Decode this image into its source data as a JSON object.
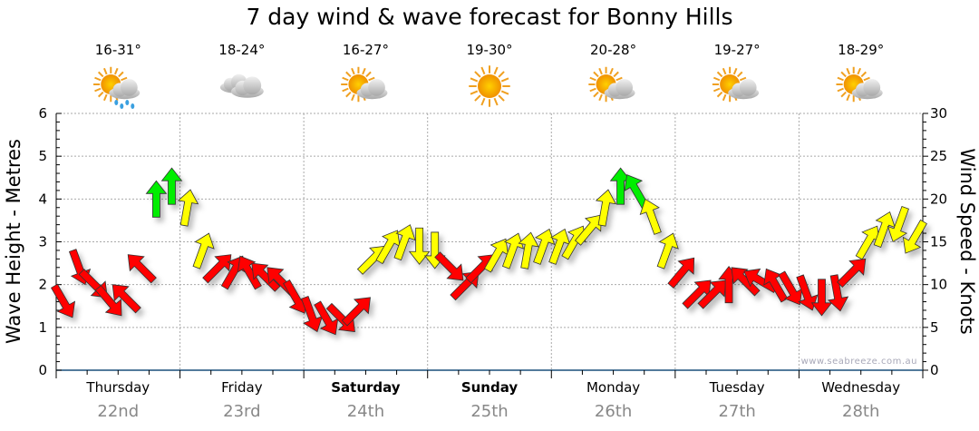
{
  "chart_data": {
    "type": "scatter",
    "title": "7 day wind & wave forecast for Bonny Hills",
    "ylabel_left": "Wave Height - Metres",
    "ylabel_right": "Wind Speed - Knots",
    "ylim_left": [
      0,
      6
    ],
    "ylim_right": [
      0,
      30
    ],
    "yticks_left": [
      "0",
      "1",
      "2",
      "3",
      "4",
      "5",
      "6"
    ],
    "yticks_right": [
      "0",
      "5",
      "10",
      "15",
      "20",
      "25",
      "30"
    ],
    "grid": true,
    "watermark": "www.seabreeze.com.au",
    "days": [
      {
        "day": "Thursday",
        "date": "22nd",
        "temp": "16-31°",
        "icon": "sun-cloud-rain-icon",
        "bold": false
      },
      {
        "day": "Friday",
        "date": "23rd",
        "temp": "18-24°",
        "icon": "cloudy-icon",
        "bold": false
      },
      {
        "day": "Saturday",
        "date": "24th",
        "temp": "16-27°",
        "icon": "partly-cloudy-icon",
        "bold": true
      },
      {
        "day": "Sunday",
        "date": "25th",
        "temp": "19-30°",
        "icon": "sunny-icon",
        "bold": true
      },
      {
        "day": "Monday",
        "date": "26th",
        "temp": "20-28°",
        "icon": "partly-cloudy-icon",
        "bold": false
      },
      {
        "day": "Tuesday",
        "date": "27th",
        "temp": "19-27°",
        "icon": "partly-cloudy-icon",
        "bold": false
      },
      {
        "day": "Wednesday",
        "date": "28th",
        "temp": "18-29°",
        "icon": "partly-cloudy-icon",
        "bold": false
      }
    ],
    "wind_interval_hours": 3,
    "wind_knots": [
      8,
      12,
      10,
      8,
      8.5,
      12,
      20,
      21.5,
      19,
      14,
      12,
      11.5,
      11.5,
      11,
      10.5,
      8.5,
      6.5,
      6,
      6,
      7,
      13,
      14.5,
      15,
      14.5,
      14,
      12,
      10,
      12,
      13.5,
      14,
      14,
      14.5,
      14.5,
      15,
      16.5,
      19,
      21.5,
      21,
      18,
      14,
      11.5,
      9,
      9,
      10,
      10.5,
      10.5,
      10,
      9.5,
      9,
      8.5,
      9,
      11.5,
      15,
      16.5,
      17,
      15.5
    ],
    "wind_direction_deg": [
      150,
      160,
      135,
      140,
      315,
      315,
      0,
      0,
      10,
      20,
      45,
      30,
      330,
      315,
      315,
      150,
      160,
      150,
      135,
      45,
      45,
      30,
      20,
      180,
      180,
      135,
      45,
      45,
      30,
      20,
      10,
      20,
      20,
      30,
      40,
      10,
      0,
      330,
      340,
      20,
      40,
      45,
      45,
      0,
      315,
      300,
      330,
      150,
      160,
      180,
      170,
      45,
      30,
      20,
      200,
      210
    ],
    "colors": {
      "light": "#ff0000",
      "moderate": "#ffff00",
      "strong": "#00ee00",
      "axis": "#1a4f7a",
      "grid": "#aaaaaa"
    }
  }
}
